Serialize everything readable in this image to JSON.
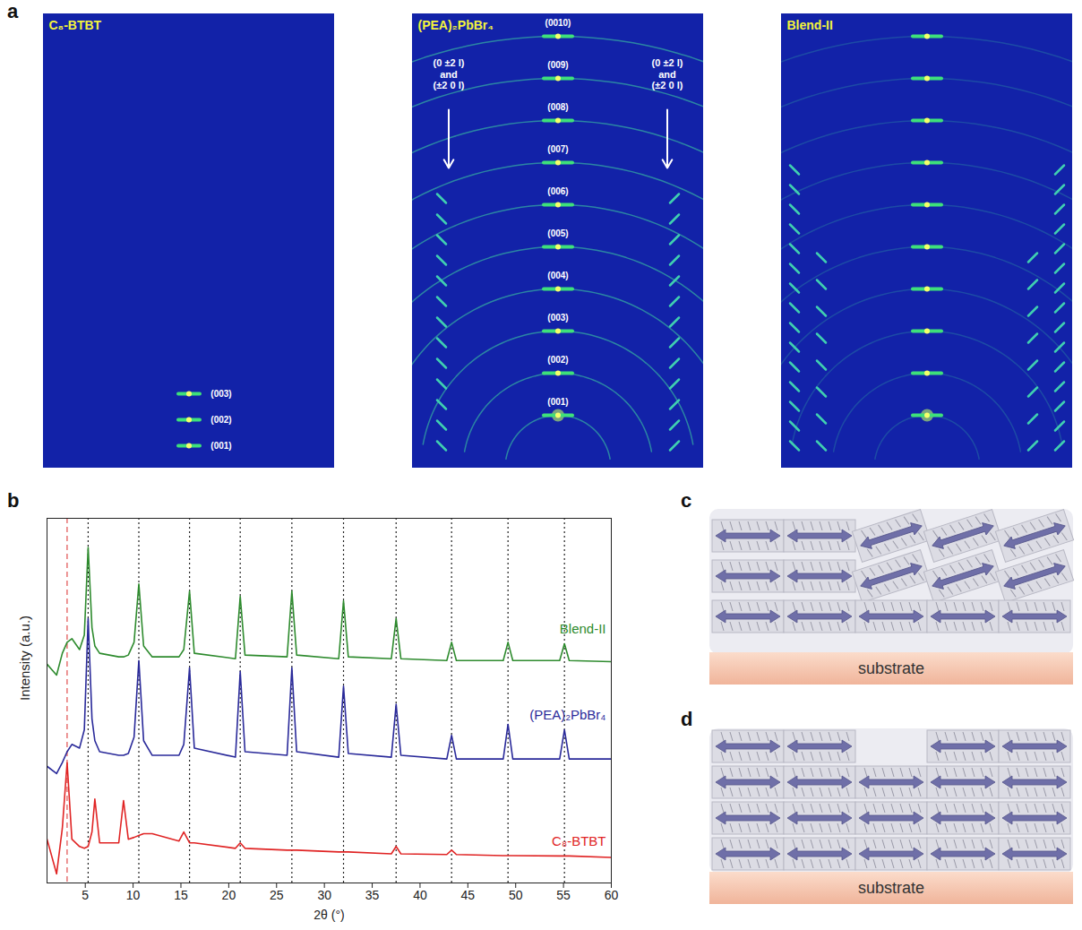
{
  "panel_a": {
    "letter": "a",
    "images": [
      {
        "title": "C₈-BTBT",
        "labels": [
          "(003)",
          "(002)",
          "(001)"
        ]
      },
      {
        "title": "(PEA)₂PbBr₄",
        "labels": [
          "(0010)",
          "(009)",
          "(008)",
          "(007)",
          "(006)",
          "(005)",
          "(004)",
          "(003)",
          "(002)",
          "(001)"
        ],
        "side_labels": [
          "(0 ±2 l)",
          "and",
          "(±2 0 l)"
        ]
      },
      {
        "title": "Blend-II"
      }
    ]
  },
  "chart_data": {
    "type": "line",
    "letter": "b",
    "xlabel": "2θ (°)",
    "ylabel": "Intensity (a.u.)",
    "x": [
      1,
      2,
      2.6,
      3.1,
      3.6,
      4.4,
      4.9,
      5.3,
      5.7,
      6.0,
      6.5,
      8.5,
      9.0,
      9.5,
      10.1,
      10.6,
      11.1,
      12,
      14.8,
      15.3,
      15.9,
      16.4,
      20.7,
      21.2,
      21.7,
      26.1,
      26.6,
      27.1,
      31.5,
      32.0,
      32.5,
      37.0,
      37.5,
      38.0,
      42.8,
      43.3,
      43.8,
      48.7,
      49.2,
      49.7,
      54.6,
      55.1,
      55.6,
      60
    ],
    "xlim": [
      1,
      60
    ],
    "xticks": [
      5,
      10,
      15,
      20,
      25,
      30,
      35,
      40,
      45,
      50,
      55,
      60
    ],
    "ylim": [
      0,
      100
    ],
    "yticks": [],
    "tick_labels": "x",
    "series": [
      {
        "name": "Blend-II",
        "color": "#2e8b2e",
        "values": [
          60,
          57,
          63,
          66,
          67,
          64,
          68,
          92,
          70,
          65,
          63,
          62,
          62,
          62.5,
          66,
          82,
          65,
          62,
          62,
          64,
          80,
          63,
          61.5,
          78.6,
          62.5,
          62,
          80,
          62.5,
          61.5,
          77.4,
          62,
          61.5,
          72.5,
          61.5,
          61,
          66,
          61,
          61,
          66,
          61,
          61,
          65.6,
          61,
          60.7
        ]
      },
      {
        "name": "(PEA)₂PbBr₄",
        "color": "#2a2a9a",
        "values": [
          32,
          30,
          33,
          36,
          38,
          37,
          42,
          72.5,
          45,
          39,
          36,
          35,
          35,
          35.5,
          40,
          61,
          39,
          35,
          35,
          38,
          59,
          37,
          34.5,
          58,
          36,
          35,
          59,
          36,
          34.5,
          54,
          35.5,
          34.5,
          49,
          35,
          34,
          40.5,
          34,
          34,
          43.5,
          34,
          34,
          42,
          34,
          34
        ]
      },
      {
        "name": "C₈-BTBT",
        "color": "#e02424",
        "values": [
          12,
          2.5,
          15,
          33,
          12,
          10,
          9.5,
          10,
          14,
          23,
          11,
          11,
          22.6,
          12,
          12.5,
          13,
          13.5,
          13.5,
          11.5,
          14,
          11,
          11,
          9.5,
          11,
          9.5,
          9,
          9,
          9,
          8.5,
          8.5,
          8.5,
          8,
          10,
          8,
          7.8,
          9,
          7.8,
          7.5,
          7.5,
          7.5,
          7.4,
          7.4,
          7.4,
          7
        ]
      }
    ],
    "reference_lines": [
      {
        "x": [
          5.3,
          10.6,
          15.9,
          21.2,
          26.6,
          32.0,
          37.5,
          43.3,
          49.2,
          55.1
        ],
        "line_style": "dotted",
        "color": "#222222"
      },
      {
        "x": [
          3.1
        ],
        "line_style": "dashed",
        "color": "#e05050"
      }
    ]
  },
  "panel_c": {
    "letter": "c",
    "substrate": "substrate"
  },
  "panel_d": {
    "letter": "d",
    "substrate": "substrate"
  }
}
